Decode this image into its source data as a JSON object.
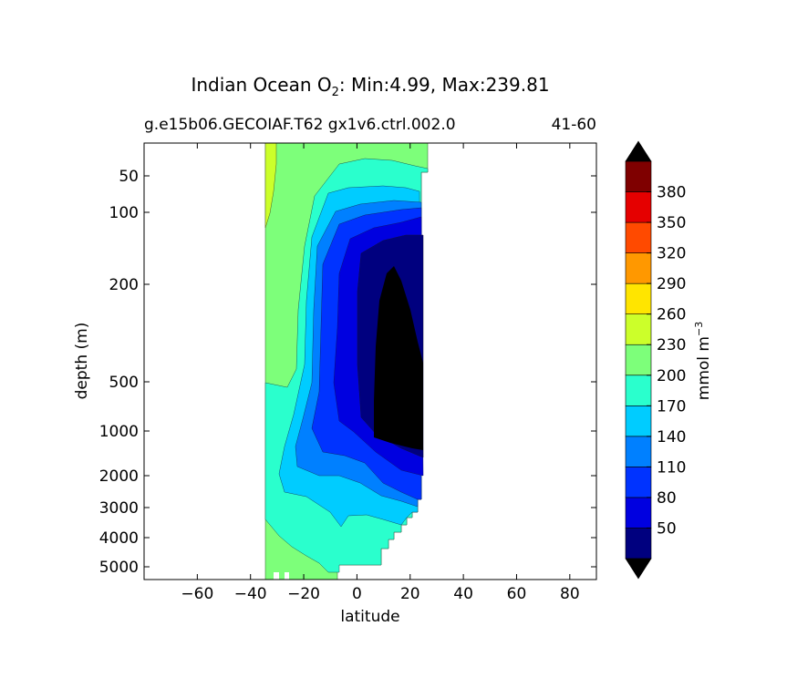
{
  "chart_data": {
    "type": "filled-contour",
    "title_prefix": "Indian Ocean O",
    "title_sub": "2",
    "title_suffix": ": Min:4.99, Max:239.81",
    "subtitle_left": "g.e15b06.GECOIAF.T62 gx1v6.ctrl.002.0",
    "subtitle_right": "41-60",
    "xlabel": "latitude",
    "ylabel": "depth (m)",
    "xlim": [
      -80,
      90
    ],
    "ylim": [
      5500,
      0
    ],
    "x_ticks": [
      -60,
      -40,
      -20,
      0,
      20,
      40,
      60,
      80
    ],
    "x_tick_labels": [
      "−60",
      "−40",
      "−20",
      "0",
      "20",
      "40",
      "60",
      "80"
    ],
    "y_ticks": [
      50,
      100,
      200,
      500,
      1000,
      2000,
      3000,
      4000,
      5000
    ],
    "y_tick_labels": [
      "50",
      "100",
      "200",
      "500",
      "1000",
      "2000",
      "3000",
      "4000",
      "5000"
    ],
    "colorbar": {
      "label": "mmol m",
      "label_sup": "−3",
      "levels": [
        20,
        50,
        80,
        110,
        140,
        170,
        200,
        230,
        260,
        290,
        320,
        350,
        380,
        410
      ],
      "tick_labels": [
        "50",
        "80",
        "110",
        "140",
        "170",
        "200",
        "230",
        "260",
        "290",
        "320",
        "350",
        "380"
      ],
      "colors": [
        "#00007f",
        "#0000e0",
        "#0033ff",
        "#0080ff",
        "#00ccff",
        "#2affcd",
        "#7dff7a",
        "#ccff2a",
        "#ffe500",
        "#ff9800",
        "#ff4a00",
        "#e50000",
        "#7f0000"
      ],
      "extend": "both",
      "under_color": "#000000",
      "over_color": "#000000"
    }
  }
}
